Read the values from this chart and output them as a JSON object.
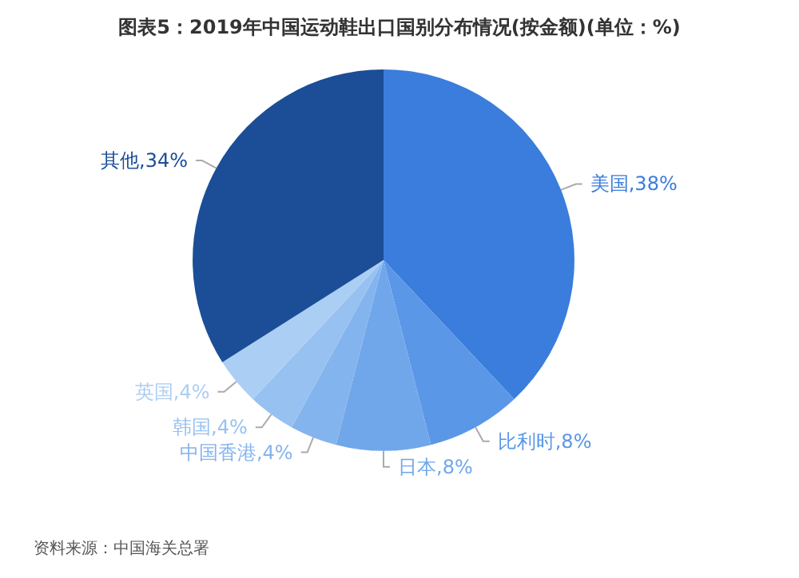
{
  "chart_data": {
    "type": "pie",
    "title": "图表5：2019年中国运动鞋出口国别分布情况(按金额)(单位：%)",
    "categories": [
      "美国",
      "比利时",
      "日本",
      "中国香港",
      "韩国",
      "英国",
      "其他"
    ],
    "values": [
      38,
      8,
      8,
      4,
      4,
      4,
      34
    ],
    "value_labels": [
      "38%",
      "8%",
      "8%",
      "4%",
      "4%",
      "4%",
      "34%"
    ],
    "colors": [
      "#3a7ddc",
      "#5a97e6",
      "#70a7eb",
      "#84b4ee",
      "#97c1f1",
      "#abcef4",
      "#1b4e97"
    ],
    "annotations": [
      "资料来源：中国海关总署"
    ],
    "legend": false
  }
}
